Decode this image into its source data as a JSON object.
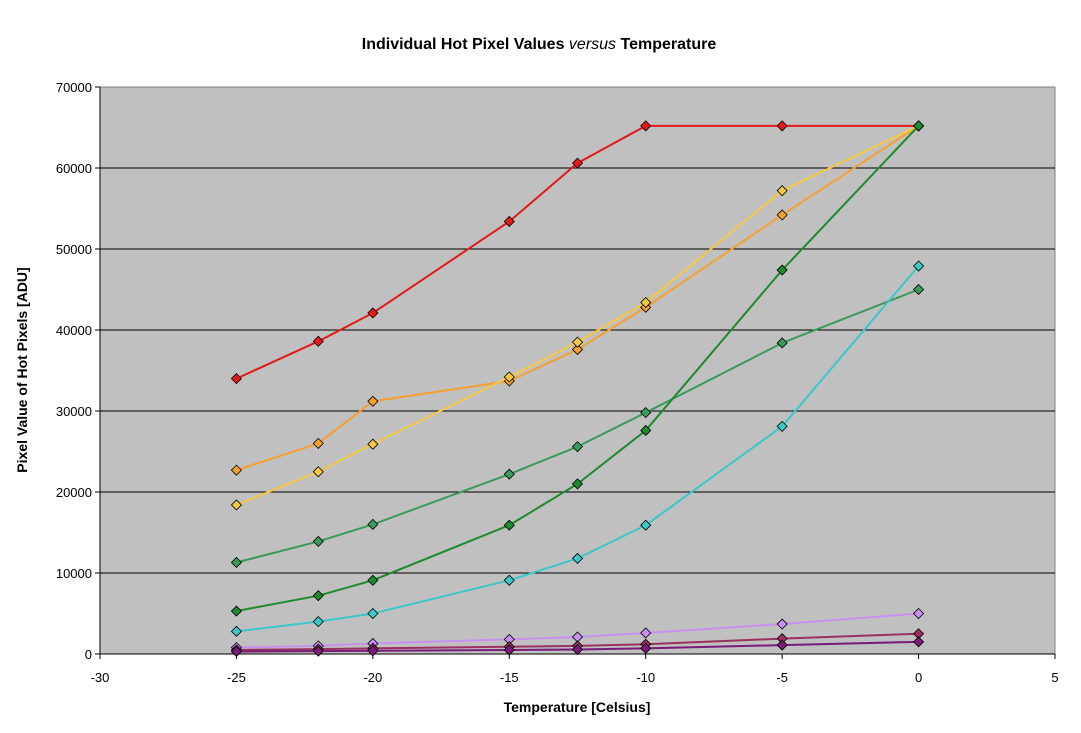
{
  "chart_data": {
    "type": "line",
    "title": "Individual Hot Pixel Values versus Temperature",
    "title_parts": {
      "before": "Individual Hot Pixel Values ",
      "emph": "versus",
      "after": " Temperature"
    },
    "xlabel": "Temperature [Celsius]",
    "ylabel": "Pixel Value of Hot Pixels [ADU]",
    "xlim": [
      -30,
      5
    ],
    "ylim": [
      0,
      70000
    ],
    "x_ticks": [
      -30,
      -25,
      -20,
      -15,
      -10,
      -5,
      0,
      5
    ],
    "y_ticks": [
      0,
      10000,
      20000,
      30000,
      40000,
      50000,
      60000,
      70000
    ],
    "grid": "horizontal",
    "plot_background": "#c0c0c0",
    "legend": "none",
    "x": [
      -25,
      -22,
      -20,
      -15,
      -12.5,
      -10,
      -5,
      0
    ],
    "series": [
      {
        "color": "#e31a1c",
        "values": [
          34000,
          38600,
          42100,
          53400,
          60600,
          65200,
          65200,
          65200
        ]
      },
      {
        "color": "#f5a030",
        "values": [
          22700,
          26000,
          31200,
          33700,
          37600,
          42800,
          54200,
          65200
        ]
      },
      {
        "color": "#f5c842",
        "values": [
          18400,
          22500,
          25900,
          34200,
          38500,
          43400,
          57200,
          65200
        ]
      },
      {
        "color": "#3a9a5c",
        "values": [
          11300,
          13900,
          16000,
          22200,
          25600,
          29800,
          38400,
          45000
        ]
      },
      {
        "color": "#1e8a2e",
        "values": [
          5300,
          7200,
          9100,
          15900,
          21000,
          27600,
          47400,
          65200
        ]
      },
      {
        "color": "#3cc8c8",
        "values": [
          2800,
          4000,
          5000,
          9100,
          11800,
          15900,
          28100,
          47900
        ]
      },
      {
        "color": "#c890f0",
        "values": [
          800,
          1000,
          1300,
          1800,
          2100,
          2600,
          3700,
          5000
        ]
      },
      {
        "color": "#9a3060",
        "values": [
          500,
          600,
          700,
          900,
          1000,
          1200,
          1900,
          2500
        ]
      },
      {
        "color": "#7a1a7a",
        "values": [
          300,
          350,
          400,
          500,
          550,
          700,
          1100,
          1500
        ]
      }
    ]
  }
}
